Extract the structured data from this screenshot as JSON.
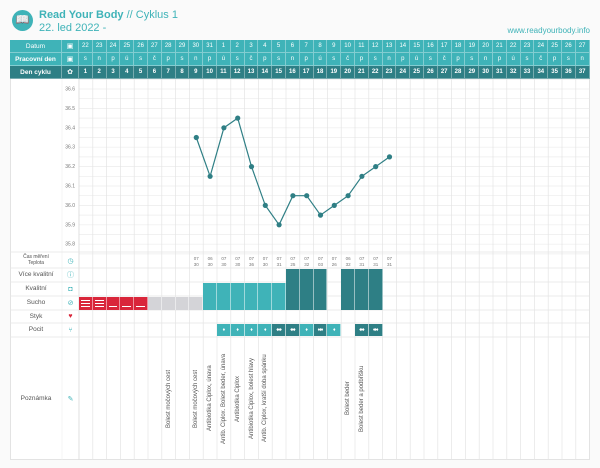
{
  "header": {
    "app_title": "Read Your Body",
    "cycle_label": "// Cyklus 1",
    "start_date": "22. led 2022 -",
    "website": "www.readyourbody.info"
  },
  "colors": {
    "teal": "#3fb3b8",
    "dark_teal": "#2e7f85",
    "red": "#d9263a",
    "grey": "#d4d4d8"
  },
  "rows": {
    "date": "Datum",
    "workday": "Pracovní den",
    "cycle_day": "Den cyklu",
    "time_label": "Čas měření",
    "temp_label": "Teplota",
    "more_quality": "Více kvalitní",
    "quality": "Kvalitní",
    "dry": "Sucho",
    "sex": "Styk",
    "feeling": "Pocit",
    "note": "Poznámka"
  },
  "dates": [
    "22",
    "23",
    "24",
    "25",
    "26",
    "27",
    "28",
    "29",
    "30",
    "31",
    "1",
    "2",
    "3",
    "4",
    "5",
    "6",
    "7",
    "8",
    "9",
    "10",
    "11",
    "12",
    "13",
    "14",
    "15",
    "16",
    "17",
    "18",
    "19",
    "20",
    "21",
    "22",
    "23",
    "24",
    "25",
    "26",
    "27"
  ],
  "weekdays": [
    "s",
    "n",
    "p",
    "ú",
    "s",
    "č",
    "p",
    "s",
    "n",
    "p",
    "ú",
    "s",
    "č",
    "p",
    "s",
    "n",
    "p",
    "ú",
    "s",
    "č",
    "p",
    "s",
    "n",
    "p",
    "ú",
    "s",
    "č",
    "p",
    "s",
    "n",
    "p",
    "ú",
    "s",
    "č",
    "p",
    "s",
    "n"
  ],
  "cycle_days": [
    "1",
    "2",
    "3",
    "4",
    "5",
    "6",
    "7",
    "8",
    "9",
    "10",
    "11",
    "12",
    "13",
    "14",
    "15",
    "16",
    "17",
    "18",
    "19",
    "20",
    "21",
    "22",
    "23",
    "24",
    "25",
    "26",
    "27",
    "28",
    "29",
    "30",
    "31",
    "32",
    "33",
    "34",
    "35",
    "36",
    "37"
  ],
  "chart_data": {
    "type": "line",
    "ylim": [
      35.75,
      36.65
    ],
    "yticks": [
      "36.6",
      "36.5",
      "36.4",
      "36.3",
      "36.2",
      "36.1",
      "36.0",
      "35.9",
      "35.8"
    ],
    "points": [
      {
        "day": 9,
        "temp": 36.35
      },
      {
        "day": 10,
        "temp": 36.15
      },
      {
        "day": 11,
        "temp": 36.4
      },
      {
        "day": 12,
        "temp": 36.45
      },
      {
        "day": 13,
        "temp": 36.2
      },
      {
        "day": 14,
        "temp": 36.0
      },
      {
        "day": 15,
        "temp": 35.9
      },
      {
        "day": 16,
        "temp": 36.05
      },
      {
        "day": 17,
        "temp": 36.05
      },
      {
        "day": 18,
        "temp": 35.95
      },
      {
        "day": 19,
        "temp": 36.0
      },
      {
        "day": 20,
        "temp": 36.05
      },
      {
        "day": 21,
        "temp": 36.15
      },
      {
        "day": 22,
        "temp": 36.2
      },
      {
        "day": 23,
        "temp": 36.25
      }
    ]
  },
  "times": [
    {
      "day": 9,
      "h": "07",
      "m": "30"
    },
    {
      "day": 10,
      "h": "06",
      "m": "30"
    },
    {
      "day": 11,
      "h": "07",
      "m": "30"
    },
    {
      "day": 12,
      "h": "07",
      "m": "30"
    },
    {
      "day": 13,
      "h": "07",
      "m": "36"
    },
    {
      "day": 14,
      "h": "07",
      "m": "30"
    },
    {
      "day": 15,
      "h": "07",
      "m": "31"
    },
    {
      "day": 16,
      "h": "07",
      "m": "25"
    },
    {
      "day": 17,
      "h": "07",
      "m": "32"
    },
    {
      "day": 18,
      "h": "07",
      "m": "03"
    },
    {
      "day": 19,
      "h": "07",
      "m": "26"
    },
    {
      "day": 20,
      "h": "06",
      "m": "32"
    },
    {
      "day": 21,
      "h": "07",
      "m": "31"
    },
    {
      "day": 22,
      "h": "07",
      "m": "31"
    },
    {
      "day": 23,
      "h": "07",
      "m": "31"
    }
  ],
  "mucus": [
    {
      "day": 1,
      "type": "dry-heavy"
    },
    {
      "day": 2,
      "type": "dry-heavy"
    },
    {
      "day": 3,
      "type": "dry"
    },
    {
      "day": 4,
      "type": "dry"
    },
    {
      "day": 5,
      "type": "dry"
    },
    {
      "day": 6,
      "type": "none"
    },
    {
      "day": 7,
      "type": "none"
    },
    {
      "day": 8,
      "type": "none"
    },
    {
      "day": 9,
      "type": "none"
    },
    {
      "day": 10,
      "type": "quality"
    },
    {
      "day": 11,
      "type": "quality"
    },
    {
      "day": 12,
      "type": "quality"
    },
    {
      "day": 13,
      "type": "quality"
    },
    {
      "day": 14,
      "type": "quality"
    },
    {
      "day": 15,
      "type": "quality"
    },
    {
      "day": 16,
      "type": "more-quality"
    },
    {
      "day": 17,
      "type": "more-quality"
    },
    {
      "day": 18,
      "type": "more-quality"
    },
    {
      "day": 20,
      "type": "more-quality"
    },
    {
      "day": 21,
      "type": "more-quality"
    },
    {
      "day": 22,
      "type": "more-quality"
    }
  ],
  "feelings": [
    {
      "day": 11,
      "type": "wet"
    },
    {
      "day": 12,
      "type": "wet"
    },
    {
      "day": 13,
      "type": "wet"
    },
    {
      "day": 14,
      "type": "wet"
    },
    {
      "day": 15,
      "type": "slippery"
    },
    {
      "day": 16,
      "type": "slippery"
    },
    {
      "day": 17,
      "type": "wet"
    },
    {
      "day": 18,
      "type": "slippery"
    },
    {
      "day": 19,
      "type": "wet"
    },
    {
      "day": 21,
      "type": "slippery"
    },
    {
      "day": 22,
      "type": "slippery"
    }
  ],
  "notes": [
    {
      "day": 7,
      "text": "Bolest močových cest"
    },
    {
      "day": 9,
      "text": "Bolest močových cest"
    },
    {
      "day": 10,
      "text": "Antibiotika Ciplox, únava"
    },
    {
      "day": 11,
      "text": "Antib. Ciplox. Bolest beder, únava"
    },
    {
      "day": 12,
      "text": "Antibiotika Ciplox"
    },
    {
      "day": 13,
      "text": "Antibiotika Ciplox, bolest hlavy"
    },
    {
      "day": 14,
      "text": "Antib. Ciplox, kratší doba spánku"
    },
    {
      "day": 20,
      "text": "Bolest beder"
    },
    {
      "day": 21,
      "text": "Bolest beder a podbřišku"
    }
  ]
}
